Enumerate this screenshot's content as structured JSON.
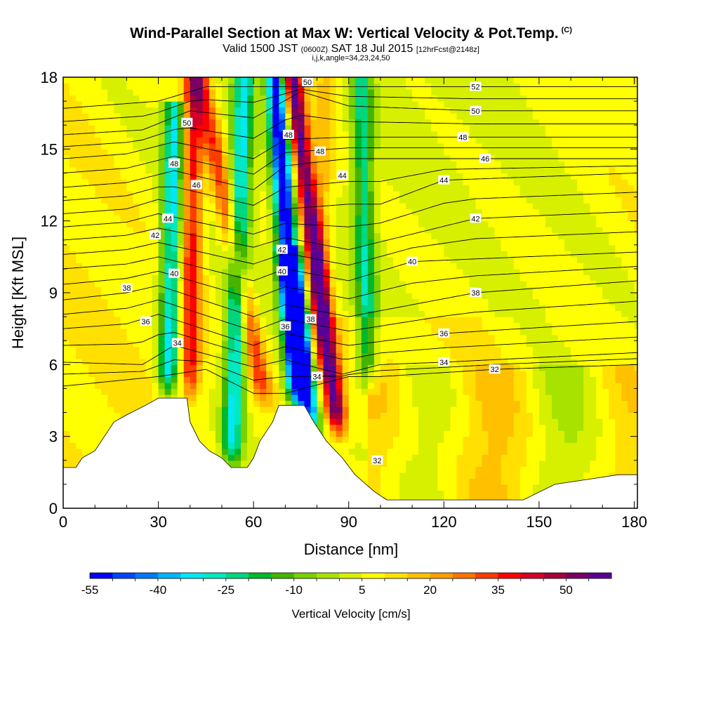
{
  "header": {
    "title": "Wind-Parallel Section at Max W: Vertical Velocity & Pot.Temp.",
    "title_mark": "(C)",
    "valid_prefix": "Valid 1500 JST",
    "valid_utc": "(0600Z)",
    "valid_date": "SAT 18 Jul 2015",
    "forecast": "[12hrFcst@2148z]",
    "ijk": "i,j,k,angle=34,23,24,50"
  },
  "chart_data": {
    "type": "heatmap",
    "xlabel": "Distance [nm]",
    "ylabel": "Height [Kft MSL]",
    "xlim": [
      0,
      181
    ],
    "ylim": [
      0,
      18
    ],
    "x_ticks": [
      0,
      30,
      60,
      90,
      120,
      150,
      180
    ],
    "y_ticks": [
      0,
      3,
      6,
      9,
      12,
      15,
      18
    ],
    "colorbar": {
      "label": "Vertical Velocity [cm/s]",
      "bounds": [
        -55,
        65
      ],
      "step": 5,
      "tick_values": [
        -55,
        -40,
        -25,
        -10,
        5,
        20,
        35,
        50
      ],
      "colors": [
        "#0000ff",
        "#0045ff",
        "#0078ff",
        "#00b4ff",
        "#00e8f2",
        "#00e8c0",
        "#00d67e",
        "#00b82a",
        "#45b400",
        "#78d200",
        "#a8e200",
        "#d7f000",
        "#ffff00",
        "#ffe000",
        "#ffc000",
        "#ff9e00",
        "#ff7300",
        "#ff3c00",
        "#ff0000",
        "#d20028",
        "#a5003c",
        "#780064",
        "#5a0096"
      ]
    },
    "velocity_bands": [
      {
        "name": "updraft",
        "x_bottom": 64,
        "x_top": 43,
        "y_bottom": 4.3,
        "y_top": 18,
        "peak": 35
      },
      {
        "name": "downdraft",
        "x_bottom": 74,
        "x_top": 67,
        "y_bottom": 4.3,
        "y_top": 18,
        "peak": -55
      },
      {
        "name": "updraft",
        "x_bottom": 79,
        "x_top": 83,
        "y_bottom": 3,
        "y_top": 18,
        "peak": 20
      },
      {
        "name": "downdraft",
        "x_bottom": 79,
        "x_top": 72,
        "y_bottom": 3,
        "y_top": 10,
        "peak": -50
      },
      {
        "name": "updraft",
        "x_bottom": 87,
        "x_top": 72,
        "y_bottom": 3,
        "y_top": 18,
        "peak": 60
      },
      {
        "name": "downdraft",
        "x_bottom": 53,
        "x_top": 57,
        "y_bottom": 1.8,
        "y_top": 18,
        "peak": -30
      },
      {
        "name": "downdraft",
        "x_bottom": 33,
        "x_top": 35,
        "y_bottom": 4.6,
        "y_top": 16,
        "peak": -30
      },
      {
        "name": "updraft",
        "x_bottom": 40,
        "x_top": 41,
        "y_bottom": 4.6,
        "y_top": 18,
        "peak": 40
      },
      {
        "name": "downdraft",
        "x_bottom": 96,
        "x_top": 94,
        "y_bottom": 5,
        "y_top": 18,
        "peak": -20
      }
    ],
    "terrain": [
      [
        0,
        1.7
      ],
      [
        4,
        1.7
      ],
      [
        6,
        2.1
      ],
      [
        10,
        2.4
      ],
      [
        12,
        2.8
      ],
      [
        14,
        3.2
      ],
      [
        16,
        3.6
      ],
      [
        20,
        3.9
      ],
      [
        26,
        4.3
      ],
      [
        30,
        4.6
      ],
      [
        39,
        4.6
      ],
      [
        40,
        3.6
      ],
      [
        43,
        2.8
      ],
      [
        46,
        2.4
      ],
      [
        50,
        2.1
      ],
      [
        53,
        1.7
      ],
      [
        58,
        1.7
      ],
      [
        60,
        2.1
      ],
      [
        62,
        2.8
      ],
      [
        66,
        3.6
      ],
      [
        68,
        4.3
      ],
      [
        76,
        4.3
      ],
      [
        79,
        3.6
      ],
      [
        83,
        2.8
      ],
      [
        88,
        2.1
      ],
      [
        92,
        1.4
      ],
      [
        98,
        0.7
      ],
      [
        102,
        0.35
      ],
      [
        145,
        0.35
      ],
      [
        155,
        1.0
      ],
      [
        165,
        1.2
      ],
      [
        175,
        1.4
      ],
      [
        180,
        1.4
      ]
    ],
    "theta_contours": [
      {
        "label": "32",
        "label_x": 136,
        "heights": [
          [
            0,
            5.1
          ],
          [
            30,
            5.5
          ],
          [
            45,
            5.8
          ],
          [
            60,
            4.8
          ],
          [
            70,
            4.8
          ],
          [
            90,
            5.5
          ],
          [
            100,
            5.5
          ],
          [
            136,
            5.8
          ],
          [
            181,
            6.0
          ]
        ]
      },
      {
        "label": "34",
        "label_x": 120,
        "heights": [
          [
            0,
            6.1
          ],
          [
            25,
            6.0
          ],
          [
            35,
            6.8
          ],
          [
            60,
            5.9
          ],
          [
            70,
            6.2
          ],
          [
            88,
            5.6
          ],
          [
            100,
            6.0
          ],
          [
            120,
            6.1
          ],
          [
            181,
            6.5
          ]
        ]
      },
      {
        "label": "36",
        "label_x": 120,
        "heights": [
          [
            0,
            7.5
          ],
          [
            20,
            7.7
          ],
          [
            30,
            8.1
          ],
          [
            60,
            6.8
          ],
          [
            70,
            7.3
          ],
          [
            90,
            6.8
          ],
          [
            120,
            7.3
          ],
          [
            181,
            7.8
          ]
        ]
      },
      {
        "label": "38",
        "label_x": 130,
        "heights": [
          [
            0,
            8.7
          ],
          [
            20,
            9.0
          ],
          [
            30,
            9.3
          ],
          [
            60,
            8.0
          ],
          [
            70,
            8.5
          ],
          [
            90,
            8.0
          ],
          [
            130,
            9.0
          ],
          [
            181,
            9.5
          ]
        ]
      },
      {
        "label": "40",
        "label_x": 110,
        "heights": [
          [
            0,
            10.0
          ],
          [
            20,
            10.2
          ],
          [
            30,
            10.5
          ],
          [
            60,
            9.5
          ],
          [
            70,
            10.0
          ],
          [
            90,
            9.5
          ],
          [
            110,
            10.3
          ],
          [
            181,
            10.7
          ]
        ]
      },
      {
        "label": "42",
        "label_x": 130,
        "heights": [
          [
            0,
            11.2
          ],
          [
            20,
            11.4
          ],
          [
            30,
            11.7
          ],
          [
            60,
            10.9
          ],
          [
            70,
            11.3
          ],
          [
            90,
            10.8
          ],
          [
            130,
            12.1
          ],
          [
            181,
            12.4
          ]
        ]
      },
      {
        "label": "44",
        "label_x": 120,
        "heights": [
          [
            0,
            12.3
          ],
          [
            20,
            12.5
          ],
          [
            30,
            12.9
          ],
          [
            60,
            12.0
          ],
          [
            70,
            12.5
          ],
          [
            90,
            12.7
          ],
          [
            100,
            12.7
          ],
          [
            120,
            13.7
          ],
          [
            181,
            14.0
          ]
        ]
      },
      {
        "label": "46",
        "label_x": 133,
        "heights": [
          [
            0,
            13.4
          ],
          [
            20,
            13.6
          ],
          [
            35,
            14.1
          ],
          [
            60,
            13.3
          ],
          [
            70,
            14.3
          ],
          [
            90,
            14.6
          ],
          [
            133,
            14.6
          ],
          [
            181,
            14.6
          ]
        ]
      },
      {
        "label": "48",
        "label_x": 126,
        "heights": [
          [
            0,
            14.6
          ],
          [
            20,
            14.8
          ],
          [
            35,
            15.3
          ],
          [
            60,
            14.6
          ],
          [
            70,
            15.4
          ],
          [
            90,
            15.5
          ],
          [
            126,
            15.5
          ],
          [
            181,
            15.5
          ]
        ]
      },
      {
        "label": "50",
        "label_x": 130,
        "heights": [
          [
            0,
            15.6
          ],
          [
            25,
            15.8
          ],
          [
            40,
            16.6
          ],
          [
            60,
            16.3
          ],
          [
            75,
            17.4
          ],
          [
            90,
            16.8
          ],
          [
            130,
            16.6
          ],
          [
            181,
            16.6
          ]
        ]
      },
      {
        "label": "52",
        "label_x": 130,
        "heights": [
          [
            0,
            16.7
          ],
          [
            30,
            17.0
          ],
          [
            45,
            17.6
          ],
          [
            90,
            17.6
          ],
          [
            130,
            17.6
          ],
          [
            181,
            17.6
          ]
        ]
      }
    ],
    "contour_annotations": [
      {
        "label": "50",
        "x": 39,
        "y": 16.1
      },
      {
        "label": "48",
        "x": 35,
        "y": 14.4
      },
      {
        "label": "46",
        "x": 42,
        "y": 13.5
      },
      {
        "label": "44",
        "x": 33,
        "y": 12.1
      },
      {
        "label": "42",
        "x": 29,
        "y": 11.4
      },
      {
        "label": "40",
        "x": 35,
        "y": 9.8
      },
      {
        "label": "38",
        "x": 20,
        "y": 9.2
      },
      {
        "label": "36",
        "x": 26,
        "y": 7.8
      },
      {
        "label": "34",
        "x": 36,
        "y": 6.9
      },
      {
        "label": "50",
        "x": 77,
        "y": 17.8
      },
      {
        "label": "48",
        "x": 71,
        "y": 15.6
      },
      {
        "label": "48",
        "x": 81,
        "y": 14.9
      },
      {
        "label": "44",
        "x": 88,
        "y": 13.9
      },
      {
        "label": "42",
        "x": 69,
        "y": 10.8
      },
      {
        "label": "40",
        "x": 69,
        "y": 9.9
      },
      {
        "label": "38",
        "x": 78,
        "y": 7.9
      },
      {
        "label": "36",
        "x": 70,
        "y": 7.6
      },
      {
        "label": "34",
        "x": 80,
        "y": 5.5
      },
      {
        "label": "32",
        "x": 99,
        "y": 2.0
      }
    ]
  }
}
